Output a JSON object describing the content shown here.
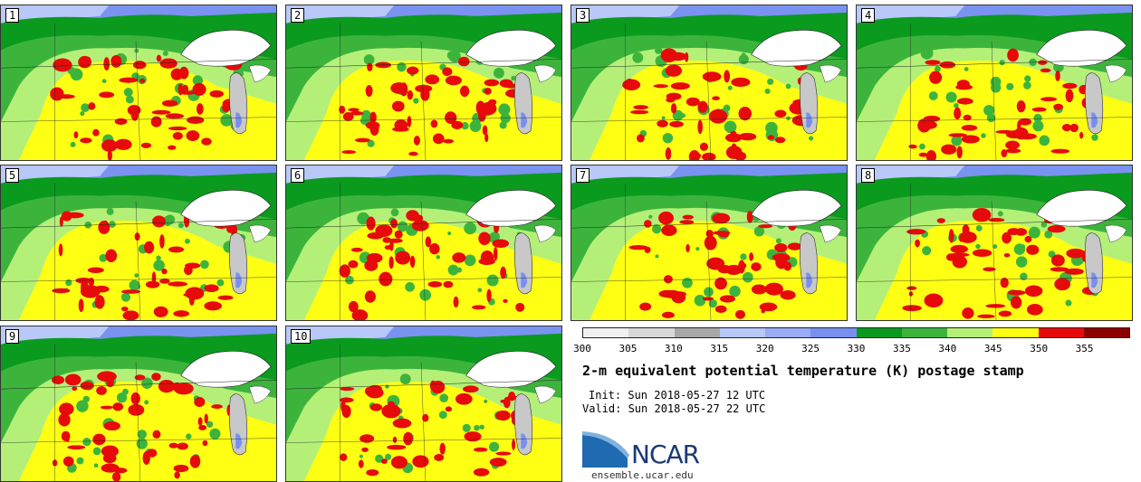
{
  "stamps": [
    {
      "label": "1"
    },
    {
      "label": "2"
    },
    {
      "label": "3"
    },
    {
      "label": "4"
    },
    {
      "label": "5"
    },
    {
      "label": "6"
    },
    {
      "label": "7"
    },
    {
      "label": "8"
    },
    {
      "label": "9"
    },
    {
      "label": "10"
    }
  ],
  "colorbar": {
    "ticks": [
      "300",
      "305",
      "310",
      "315",
      "320",
      "325",
      "330",
      "335",
      "340",
      "345",
      "350",
      "355"
    ],
    "colors": [
      "#f0f0f0",
      "#d8d8d8",
      "#a8a8a8",
      "#b8c8f8",
      "#98acf8",
      "#7890f0",
      "#0a9a1e",
      "#3cb43c",
      "#b4f078",
      "#ffff14",
      "#e60a0a",
      "#8c0000"
    ]
  },
  "title": "2-m equivalent potential temperature (K) postage stamp",
  "init": "Init: Sun 2018-05-27 12 UTC",
  "valid": "Valid: Sun 2018-05-27 22 UTC",
  "logo": {
    "text": "NCAR",
    "url": "ensemble.ucar.edu"
  }
}
